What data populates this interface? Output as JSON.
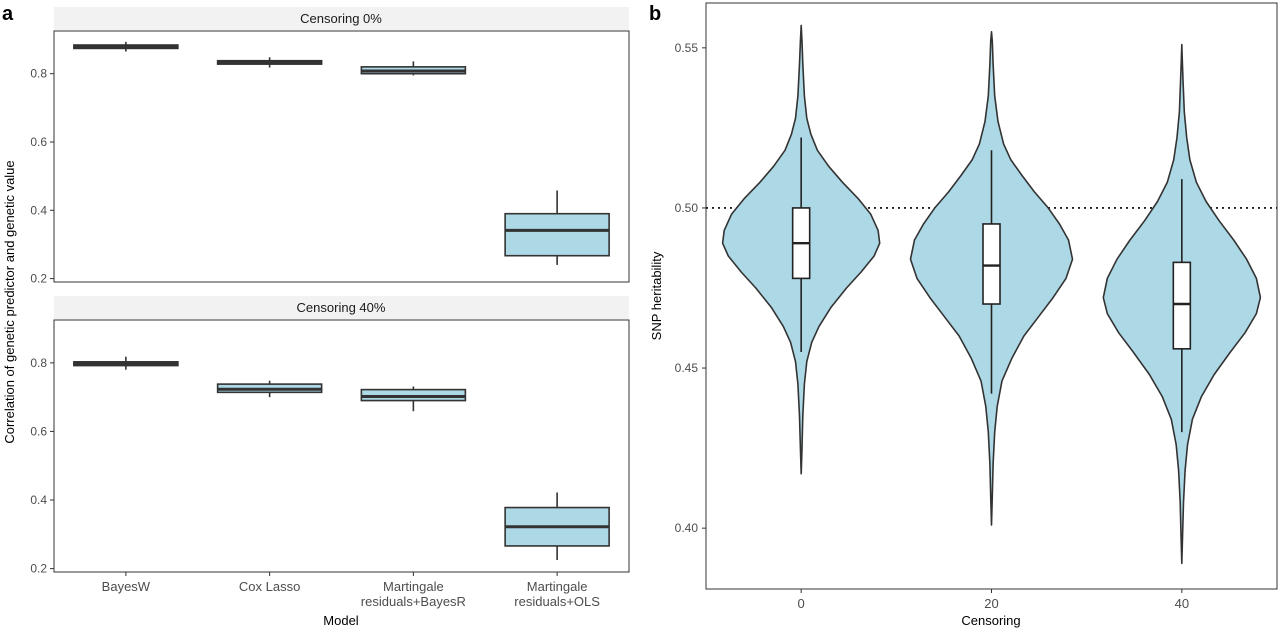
{
  "panel_labels": {
    "a": "a",
    "b": "b"
  },
  "colors": {
    "fill": "#add8e6",
    "stroke": "#333333",
    "strip": "#f2f2f2",
    "axis": "#333333"
  },
  "chart_data": [
    {
      "type": "box",
      "panel": "a",
      "ylabel": "Correlation of genetic predictor and genetic value",
      "xlabel": "Model",
      "categories": [
        [
          "BayesW"
        ],
        [
          "Cox Lasso"
        ],
        [
          "Martingale",
          "residuals+BayesR"
        ],
        [
          "Martingale",
          "residuals+OLS"
        ]
      ],
      "ylim": [
        0.19,
        0.925
      ],
      "yticks": [
        0.2,
        0.4,
        0.6,
        0.8
      ],
      "facets": [
        {
          "label": "Censoring 0%",
          "boxes": [
            {
              "min": 0.865,
              "q1": 0.874,
              "median": 0.879,
              "q3": 0.884,
              "max": 0.893
            },
            {
              "min": 0.818,
              "q1": 0.828,
              "median": 0.833,
              "q3": 0.838,
              "max": 0.848
            },
            {
              "min": 0.795,
              "q1": 0.8,
              "median": 0.808,
              "q3": 0.82,
              "max": 0.836
            },
            {
              "min": 0.24,
              "q1": 0.267,
              "median": 0.341,
              "q3": 0.39,
              "max": 0.458
            }
          ]
        },
        {
          "label": "Censoring 40%",
          "boxes": [
            {
              "min": 0.78,
              "q1": 0.792,
              "median": 0.797,
              "q3": 0.803,
              "max": 0.818
            },
            {
              "min": 0.7,
              "q1": 0.714,
              "median": 0.723,
              "q3": 0.738,
              "max": 0.748
            },
            {
              "min": 0.659,
              "q1": 0.69,
              "median": 0.702,
              "q3": 0.722,
              "max": 0.731
            },
            {
              "min": 0.225,
              "q1": 0.266,
              "median": 0.322,
              "q3": 0.378,
              "max": 0.422
            }
          ]
        }
      ]
    },
    {
      "type": "violin",
      "panel": "b",
      "ylabel": "SNP heritability",
      "xlabel": "Censoring",
      "x": [
        0,
        20,
        40
      ],
      "ylim": [
        0.381,
        0.564
      ],
      "yticks": [
        0.4,
        0.45,
        0.5,
        0.55
      ],
      "xlim": [
        -10,
        50
      ],
      "reference_line": 0.5,
      "violins": [
        {
          "x": 0,
          "box": {
            "min": 0.455,
            "q1": 0.478,
            "median": 0.489,
            "q3": 0.5,
            "max": 0.522
          },
          "density": [
            [
              0.417,
              0.0
            ],
            [
              0.425,
              0.01
            ],
            [
              0.435,
              0.02
            ],
            [
              0.445,
              0.04
            ],
            [
              0.452,
              0.07
            ],
            [
              0.458,
              0.13
            ],
            [
              0.463,
              0.22
            ],
            [
              0.469,
              0.37
            ],
            [
              0.475,
              0.56
            ],
            [
              0.48,
              0.74
            ],
            [
              0.485,
              0.9
            ],
            [
              0.489,
              0.97
            ],
            [
              0.493,
              0.95
            ],
            [
              0.498,
              0.86
            ],
            [
              0.503,
              0.7
            ],
            [
              0.508,
              0.51
            ],
            [
              0.513,
              0.34
            ],
            [
              0.518,
              0.2
            ],
            [
              0.523,
              0.12
            ],
            [
              0.528,
              0.07
            ],
            [
              0.535,
              0.04
            ],
            [
              0.545,
              0.02
            ],
            [
              0.552,
              0.01
            ],
            [
              0.557,
              0.0
            ]
          ]
        },
        {
          "x": 20,
          "box": {
            "min": 0.442,
            "q1": 0.47,
            "median": 0.482,
            "q3": 0.495,
            "max": 0.518
          },
          "density": [
            [
              0.401,
              0.0
            ],
            [
              0.41,
              0.01
            ],
            [
              0.42,
              0.02
            ],
            [
              0.43,
              0.04
            ],
            [
              0.438,
              0.07
            ],
            [
              0.446,
              0.13
            ],
            [
              0.453,
              0.25
            ],
            [
              0.46,
              0.4
            ],
            [
              0.466,
              0.58
            ],
            [
              0.472,
              0.76
            ],
            [
              0.478,
              0.92
            ],
            [
              0.484,
              1.0
            ],
            [
              0.49,
              0.95
            ],
            [
              0.495,
              0.84
            ],
            [
              0.5,
              0.7
            ],
            [
              0.505,
              0.53
            ],
            [
              0.51,
              0.38
            ],
            [
              0.515,
              0.24
            ],
            [
              0.52,
              0.15
            ],
            [
              0.527,
              0.08
            ],
            [
              0.535,
              0.04
            ],
            [
              0.545,
              0.02
            ],
            [
              0.552,
              0.01
            ],
            [
              0.555,
              0.0
            ]
          ]
        },
        {
          "x": 40,
          "box": {
            "min": 0.43,
            "q1": 0.456,
            "median": 0.47,
            "q3": 0.483,
            "max": 0.509
          },
          "density": [
            [
              0.389,
              0.0
            ],
            [
              0.398,
              0.01
            ],
            [
              0.408,
              0.02
            ],
            [
              0.418,
              0.04
            ],
            [
              0.426,
              0.07
            ],
            [
              0.434,
              0.13
            ],
            [
              0.441,
              0.24
            ],
            [
              0.448,
              0.4
            ],
            [
              0.455,
              0.6
            ],
            [
              0.461,
              0.78
            ],
            [
              0.467,
              0.92
            ],
            [
              0.472,
              0.97
            ],
            [
              0.478,
              0.92
            ],
            [
              0.484,
              0.8
            ],
            [
              0.49,
              0.64
            ],
            [
              0.496,
              0.46
            ],
            [
              0.502,
              0.3
            ],
            [
              0.508,
              0.18
            ],
            [
              0.515,
              0.1
            ],
            [
              0.522,
              0.06
            ],
            [
              0.53,
              0.03
            ],
            [
              0.54,
              0.015
            ],
            [
              0.547,
              0.005
            ],
            [
              0.551,
              0.0
            ]
          ]
        }
      ]
    }
  ]
}
